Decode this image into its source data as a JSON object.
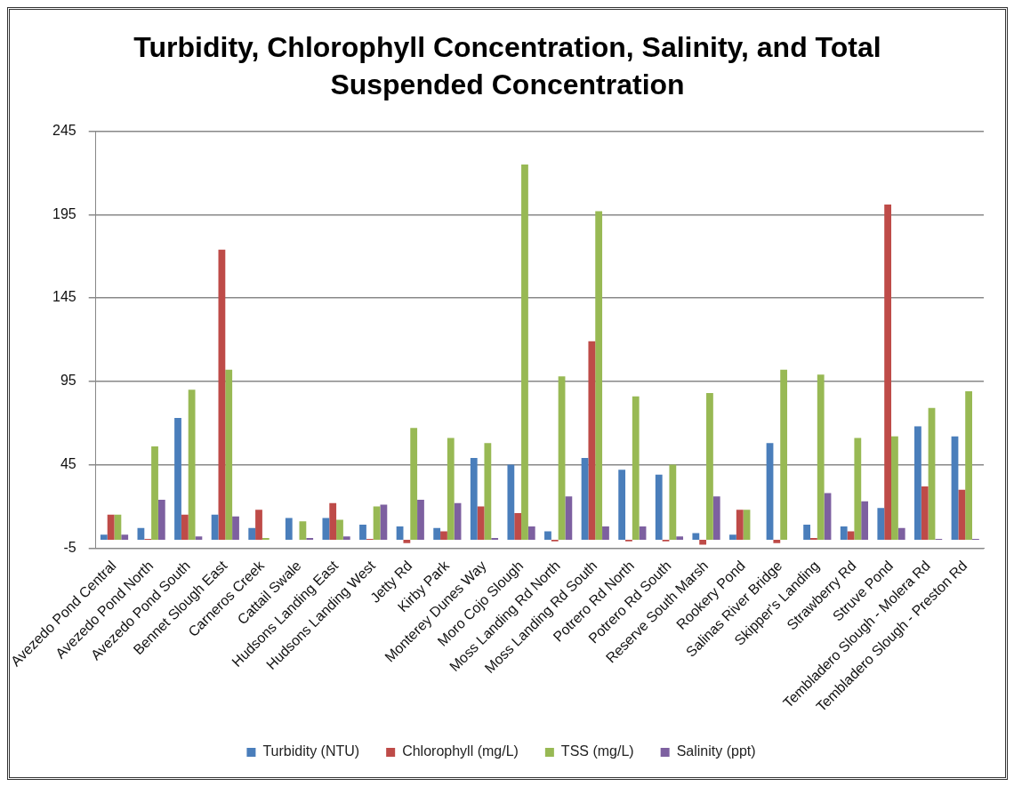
{
  "chart_data": {
    "type": "bar",
    "title": "Turbidity, Chlorophyll Concentration, Salinity, and Total Suspended Concentration",
    "categories": [
      "Avezedo Pond Central",
      "Avezedo Pond North",
      "Avezedo Pond South",
      "Bennet Slough East",
      "Carneros Creek",
      "Cattail Swale",
      "Hudsons Landing East",
      "Hudsons Landing West",
      "Jetty Rd",
      "Kirby Park",
      "Monterey Dunes Way",
      "Moro Cojo Slough",
      "Moss Landing Rd North",
      "Moss Landing Rd South",
      "Potrero Rd North",
      "Potrero Rd South",
      "Reserve South Marsh",
      "Rookery Pond",
      "Salinas River Bridge",
      "Skipper's Landing",
      "Strawberry Rd",
      "Struve Pond",
      "Tembladero Slough - Molera Rd",
      "Tembladero Slough - Preston Rd"
    ],
    "series": [
      {
        "name": "Turbidity (NTU)",
        "color": "#4a7ebb",
        "values": [
          3,
          7,
          73,
          15,
          7,
          13,
          13,
          9,
          8,
          7,
          49,
          45,
          5,
          49,
          42,
          39,
          4,
          3,
          58,
          9,
          8,
          19,
          68,
          62
        ]
      },
      {
        "name": "Chlorophyll (mg/L)",
        "color": "#be4b48",
        "values": [
          15,
          0.5,
          15,
          174,
          18,
          0,
          22,
          0.5,
          -2,
          5,
          20,
          16,
          -1,
          119,
          -1,
          -1,
          -3,
          18,
          -2,
          1,
          5,
          201,
          32,
          30
        ]
      },
      {
        "name": "TSS (mg/L)",
        "color": "#98b954",
        "values": [
          15,
          56,
          90,
          102,
          1,
          11,
          12,
          20,
          67,
          61,
          58,
          225,
          98,
          197,
          86,
          45,
          88,
          18,
          102,
          99,
          61,
          62,
          79,
          89
        ]
      },
      {
        "name": "Salinity (ppt)",
        "color": "#7d60a0",
        "values": [
          3,
          24,
          2,
          14,
          0,
          1,
          2,
          21,
          24,
          22,
          1,
          8,
          26,
          8,
          8,
          2,
          26,
          0,
          0,
          28,
          23,
          7,
          0.5,
          0.5
        ]
      }
    ],
    "ylim": [
      -5,
      245
    ],
    "yticks": [
      -5,
      45,
      95,
      145,
      195,
      245
    ],
    "grid": "y",
    "legend": "bottom"
  }
}
